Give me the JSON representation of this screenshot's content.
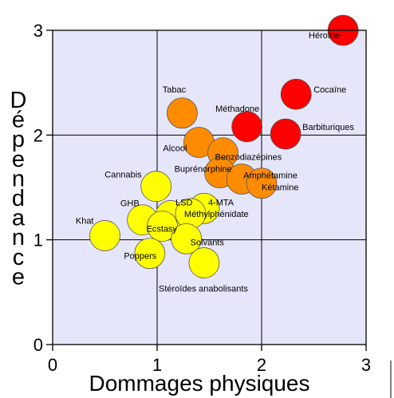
{
  "chart_data": {
    "type": "scatter",
    "title": "",
    "xlabel": "Dommages physiques",
    "ylabel": "Dépendance",
    "xlim": [
      0,
      3
    ],
    "ylim": [
      0,
      3
    ],
    "xticks": [
      "0",
      "1",
      "2",
      "3"
    ],
    "yticks": [
      "0",
      "1",
      "2",
      "3"
    ],
    "grid": true,
    "legend": "none",
    "colors": {
      "plot_background": "#e6e6fa",
      "red": "#ff0000",
      "orange": "#ff8c00",
      "yellow": "#ffff00"
    },
    "points": [
      {
        "label": "Héroïne",
        "x": 2.78,
        "y": 3.0,
        "color": "red"
      },
      {
        "label": "Cocaïne",
        "x": 2.33,
        "y": 2.39,
        "color": "red"
      },
      {
        "label": "Méthadone",
        "x": 1.86,
        "y": 2.08,
        "color": "red"
      },
      {
        "label": "Barbituriques",
        "x": 2.23,
        "y": 2.01,
        "color": "red"
      },
      {
        "label": "Tabac",
        "x": 1.24,
        "y": 2.21,
        "color": "orange"
      },
      {
        "label": "Alcool",
        "x": 1.4,
        "y": 1.93,
        "color": "orange"
      },
      {
        "label": "Benzodiazépines",
        "x": 1.63,
        "y": 1.83,
        "color": "orange"
      },
      {
        "label": "Buprénorphine",
        "x": 1.6,
        "y": 1.64,
        "color": "orange"
      },
      {
        "label": "Amphétamine",
        "x": 1.81,
        "y": 1.58,
        "color": "orange"
      },
      {
        "label": "Kétamine",
        "x": 2.0,
        "y": 1.54,
        "color": "orange"
      },
      {
        "label": "Cannabis",
        "x": 0.99,
        "y": 1.51,
        "color": "yellow"
      },
      {
        "label": "LSD",
        "x": 1.13,
        "y": 1.23,
        "color": "yellow"
      },
      {
        "label": "4-MTA",
        "x": 1.45,
        "y": 1.3,
        "color": "yellow"
      },
      {
        "label": "GHB",
        "x": 0.86,
        "y": 1.19,
        "color": "yellow"
      },
      {
        "label": "Méthylphénidate",
        "x": 1.32,
        "y": 1.25,
        "color": "yellow"
      },
      {
        "label": "Ecstasy",
        "x": 1.05,
        "y": 1.13,
        "color": "yellow"
      },
      {
        "label": "Khat",
        "x": 0.5,
        "y": 1.04,
        "color": "yellow"
      },
      {
        "label": "Solvants",
        "x": 1.28,
        "y": 1.01,
        "color": "yellow"
      },
      {
        "label": "Poppers",
        "x": 0.93,
        "y": 0.87,
        "color": "yellow"
      },
      {
        "label": "Stéroïdes anabolisants",
        "x": 1.45,
        "y": 0.78,
        "color": "yellow"
      }
    ]
  }
}
